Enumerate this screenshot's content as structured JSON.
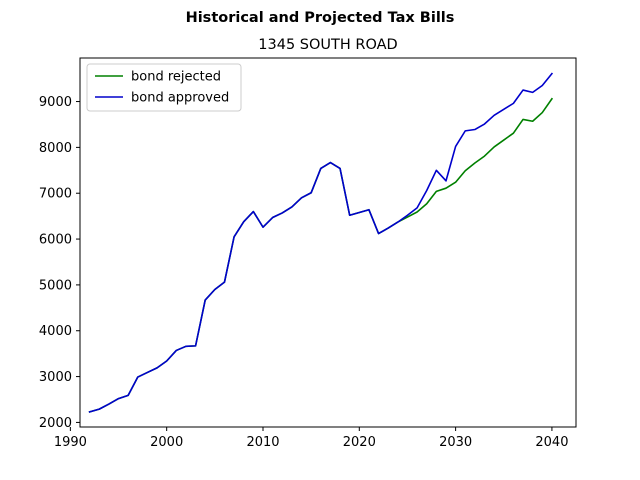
{
  "chart_data": {
    "type": "line",
    "suptitle": "Historical and Projected Tax Bills",
    "title": "1345 SOUTH ROAD",
    "xlabel": "",
    "ylabel": "",
    "xlim": [
      1991,
      2042.5
    ],
    "ylim": [
      1900,
      9950
    ],
    "xticks": [
      1990,
      2000,
      2010,
      2020,
      2030,
      2040
    ],
    "yticks": [
      2000,
      3000,
      4000,
      5000,
      6000,
      7000,
      8000,
      9000
    ],
    "grid": false,
    "legend_position": "top-left",
    "series": [
      {
        "name": "bond rejected",
        "color": "#008000",
        "x": [
          1992,
          1993,
          1994,
          1995,
          1996,
          1997,
          1998,
          1999,
          2000,
          2001,
          2002,
          2003,
          2004,
          2005,
          2006,
          2007,
          2008,
          2009,
          2010,
          2011,
          2012,
          2013,
          2014,
          2015,
          2016,
          2017,
          2018,
          2019,
          2020,
          2021,
          2022,
          2023,
          2024,
          2025,
          2026,
          2027,
          2028,
          2029,
          2030,
          2031,
          2032,
          2033,
          2034,
          2035,
          2036,
          2037,
          2038,
          2039,
          2040
        ],
        "values": [
          2230,
          2290,
          2400,
          2520,
          2590,
          2990,
          3090,
          3190,
          3340,
          3570,
          3660,
          3670,
          4670,
          4900,
          5060,
          6050,
          6380,
          6600,
          6260,
          6470,
          6570,
          6700,
          6900,
          7010,
          7540,
          7670,
          7540,
          6520,
          6580,
          6640,
          6120,
          6240,
          6370,
          6480,
          6590,
          6770,
          7040,
          7110,
          7240,
          7490,
          7660,
          7810,
          8010,
          8160,
          8310,
          8610,
          8570,
          8760,
          9060
        ]
      },
      {
        "name": "bond approved",
        "color": "#0000cc",
        "x": [
          1992,
          1993,
          1994,
          1995,
          1996,
          1997,
          1998,
          1999,
          2000,
          2001,
          2002,
          2003,
          2004,
          2005,
          2006,
          2007,
          2008,
          2009,
          2010,
          2011,
          2012,
          2013,
          2014,
          2015,
          2016,
          2017,
          2018,
          2019,
          2020,
          2021,
          2022,
          2023,
          2024,
          2025,
          2026,
          2027,
          2028,
          2029,
          2030,
          2031,
          2032,
          2033,
          2034,
          2035,
          2036,
          2037,
          2038,
          2039,
          2040
        ],
        "values": [
          2230,
          2290,
          2400,
          2520,
          2590,
          2990,
          3090,
          3190,
          3340,
          3570,
          3660,
          3670,
          4670,
          4900,
          5060,
          6050,
          6380,
          6600,
          6260,
          6470,
          6570,
          6700,
          6900,
          7010,
          7540,
          7670,
          7540,
          6520,
          6580,
          6640,
          6120,
          6240,
          6370,
          6520,
          6680,
          7060,
          7500,
          7270,
          8020,
          8360,
          8390,
          8510,
          8700,
          8830,
          8960,
          9250,
          9200,
          9350,
          9610
        ]
      }
    ]
  }
}
